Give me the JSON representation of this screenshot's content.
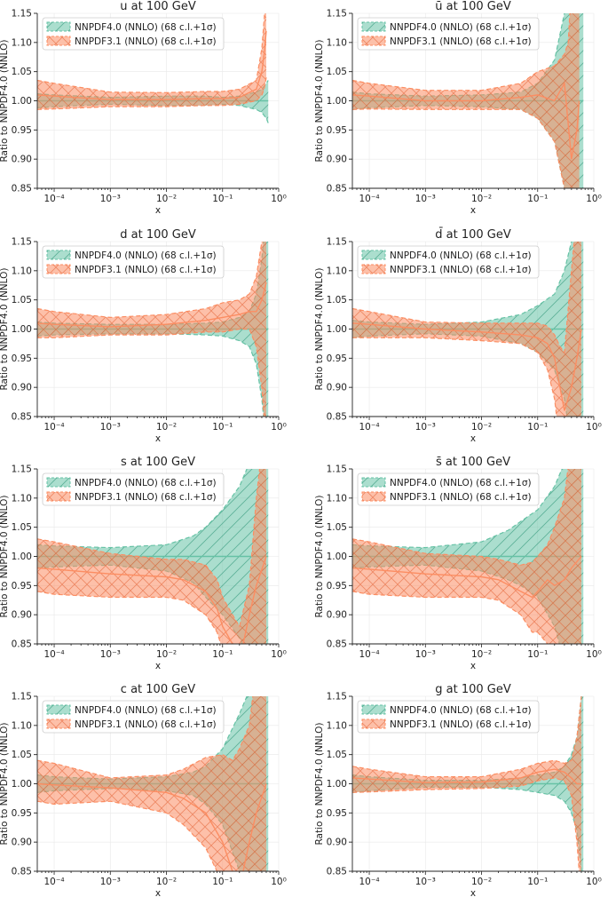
{
  "figure": {
    "x_ticks": [
      "10⁻⁴",
      "10⁻³",
      "10⁻²",
      "10⁻¹",
      "10⁰"
    ],
    "y_ticks": [
      "0.85",
      "0.90",
      "0.95",
      "1.00",
      "1.05",
      "1.10",
      "1.15"
    ]
  },
  "colors": {
    "nnpdf40": "#66c2a5",
    "nnpdf31": "#fc8d62"
  },
  "chart_data": [
    {
      "type": "area",
      "title": "u at 100 GeV",
      "xlabel": "x",
      "ylabel": "Ratio to NNPDF4.0 (NNLO)",
      "xscale": "log",
      "xlim": [
        5e-05,
        1
      ],
      "ylim": [
        0.85,
        1.15
      ],
      "legend": [
        "NNPDF4.0 (NNLO) (68 c.l.+1σ)",
        "NNPDF3.1 (NNLO) (68 c.l.+1σ)"
      ],
      "series": [
        {
          "name": "NNPDF4.0 (NNLO)",
          "x": [
            5e-05,
            0.0001,
            0.001,
            0.01,
            0.05,
            0.1,
            0.2,
            0.4,
            0.5,
            0.6,
            0.65
          ],
          "central": [
            1,
            1,
            1,
            1,
            1,
            1,
            1,
            1,
            1,
            1,
            1
          ],
          "upper": [
            1.012,
            1.01,
            1.006,
            1.008,
            1.008,
            1.006,
            1.008,
            1.015,
            1.02,
            1.03,
            1.035
          ],
          "lower": [
            0.988,
            0.99,
            0.994,
            0.992,
            0.992,
            0.994,
            0.992,
            0.985,
            0.98,
            0.97,
            0.962
          ]
        },
        {
          "name": "NNPDF3.1 (NNLO)",
          "x": [
            5e-05,
            0.0001,
            0.001,
            0.01,
            0.05,
            0.1,
            0.2,
            0.4,
            0.5,
            0.55,
            0.6
          ],
          "central": [
            1.01,
            1.008,
            1.002,
            1.002,
            1.004,
            1.004,
            1.006,
            1.02,
            1.05,
            1.08,
            1.12
          ],
          "upper": [
            1.035,
            1.03,
            1.015,
            1.014,
            1.016,
            1.016,
            1.02,
            1.035,
            1.09,
            1.14,
            1.2
          ],
          "lower": [
            0.985,
            0.986,
            0.99,
            0.99,
            0.992,
            0.992,
            0.994,
            1.0,
            1.01,
            1.02,
            1.04
          ]
        }
      ]
    },
    {
      "type": "area",
      "title": "ū at 100 GeV",
      "xlabel": "x",
      "ylabel": "Ratio to NNPDF4.0 (NNLO)",
      "xscale": "log",
      "xlim": [
        5e-05,
        1
      ],
      "ylim": [
        0.85,
        1.15
      ],
      "legend": [
        "NNPDF4.0 (NNLO) (68 c.l.+1σ)",
        "NNPDF3.1 (NNLO) (68 c.l.+1σ)"
      ],
      "series": [
        {
          "name": "NNPDF4.0 (NNLO)",
          "x": [
            5e-05,
            0.0001,
            0.001,
            0.01,
            0.05,
            0.1,
            0.2,
            0.3,
            0.4,
            0.6,
            0.65
          ],
          "central": [
            1,
            1,
            1,
            1,
            1,
            1,
            1,
            1,
            1,
            1,
            1
          ],
          "upper": [
            1.015,
            1.012,
            1.008,
            1.01,
            1.015,
            1.03,
            1.07,
            1.15,
            1.25,
            1.25,
            1.25
          ],
          "lower": [
            0.985,
            0.988,
            0.992,
            0.99,
            0.985,
            0.97,
            0.93,
            0.85,
            0.75,
            0.75,
            0.75
          ]
        },
        {
          "name": "NNPDF3.1 (NNLO)",
          "x": [
            5e-05,
            0.0001,
            0.001,
            0.01,
            0.05,
            0.1,
            0.2,
            0.3,
            0.35,
            0.4,
            0.5,
            0.55
          ],
          "central": [
            1.01,
            1.008,
            1.0,
            1.0,
            1.006,
            1.01,
            1.0,
            1.03,
            0.96,
            0.9,
            0.95,
            1.0
          ],
          "upper": [
            1.035,
            1.03,
            1.018,
            1.018,
            1.03,
            1.05,
            1.06,
            1.08,
            1.1,
            1.2,
            1.25,
            1.25
          ],
          "lower": [
            0.985,
            0.986,
            0.985,
            0.985,
            0.985,
            0.97,
            0.93,
            0.85,
            0.75,
            0.75,
            0.75,
            0.75
          ]
        }
      ]
    },
    {
      "type": "area",
      "title": "d at 100 GeV",
      "xlabel": "x",
      "ylabel": "Ratio to NNPDF4.0 (NNLO)",
      "xscale": "log",
      "xlim": [
        5e-05,
        1
      ],
      "ylim": [
        0.85,
        1.15
      ],
      "legend": [
        "NNPDF4.0 (NNLO) (68 c.l.+1σ)",
        "NNPDF3.1 (NNLO) (68 c.l.+1σ)"
      ],
      "series": [
        {
          "name": "NNPDF4.0 (NNLO)",
          "x": [
            5e-05,
            0.0001,
            0.001,
            0.01,
            0.05,
            0.1,
            0.2,
            0.3,
            0.4,
            0.5,
            0.6,
            0.65
          ],
          "central": [
            1,
            1,
            1,
            1,
            1,
            1,
            1,
            1,
            1,
            1,
            1,
            1
          ],
          "upper": [
            1.012,
            1.01,
            1.008,
            1.008,
            1.01,
            1.012,
            1.02,
            1.03,
            1.06,
            1.12,
            1.2,
            1.25
          ],
          "lower": [
            0.988,
            0.99,
            0.992,
            0.992,
            0.99,
            0.988,
            0.98,
            0.97,
            0.94,
            0.88,
            0.8,
            0.75
          ]
        },
        {
          "name": "NNPDF3.1 (NNLO)",
          "x": [
            5e-05,
            0.0001,
            0.001,
            0.01,
            0.05,
            0.1,
            0.2,
            0.3,
            0.4,
            0.5,
            0.6
          ],
          "central": [
            1.01,
            1.008,
            1.004,
            1.008,
            1.015,
            1.02,
            1.025,
            1.03,
            1.03,
            1.05,
            1.08
          ],
          "upper": [
            1.035,
            1.03,
            1.02,
            1.025,
            1.035,
            1.045,
            1.05,
            1.06,
            1.09,
            1.15,
            1.25
          ],
          "lower": [
            0.985,
            0.985,
            0.99,
            0.99,
            0.995,
            0.995,
            1.0,
            1.0,
            0.97,
            0.9,
            0.8
          ]
        }
      ]
    },
    {
      "type": "area",
      "title": "d̄ at 100 GeV",
      "xlabel": "x",
      "ylabel": "Ratio to NNPDF4.0 (NNLO)",
      "xscale": "log",
      "xlim": [
        5e-05,
        1
      ],
      "ylim": [
        0.85,
        1.15
      ],
      "legend": [
        "NNPDF4.0 (NNLO) (68 c.l.+1σ)",
        "NNPDF3.1 (NNLO) (68 c.l.+1σ)"
      ],
      "series": [
        {
          "name": "NNPDF4.0 (NNLO)",
          "x": [
            5e-05,
            0.0001,
            0.001,
            0.01,
            0.05,
            0.1,
            0.2,
            0.3,
            0.4,
            0.5,
            0.6,
            0.65
          ],
          "central": [
            1,
            1,
            1,
            1,
            1,
            1,
            1,
            1,
            1,
            1,
            1,
            1
          ],
          "upper": [
            1.015,
            1.012,
            1.008,
            1.012,
            1.025,
            1.04,
            1.06,
            1.1,
            1.15,
            1.25,
            1.25,
            1.25
          ],
          "lower": [
            0.985,
            0.988,
            0.992,
            0.988,
            0.975,
            0.96,
            0.93,
            0.88,
            0.8,
            0.75,
            0.75,
            0.75
          ]
        },
        {
          "name": "NNPDF3.1 (NNLO)",
          "x": [
            5e-05,
            0.0001,
            0.001,
            0.01,
            0.05,
            0.1,
            0.15,
            0.2,
            0.25,
            0.3,
            0.4,
            0.5,
            0.6
          ],
          "central": [
            1.01,
            1.008,
            1.0,
            0.995,
            0.99,
            0.985,
            0.975,
            0.95,
            0.9,
            0.86,
            0.9,
            0.95,
            1.0
          ],
          "upper": [
            1.035,
            1.03,
            1.012,
            1.01,
            1.01,
            1.01,
            1.005,
            0.99,
            0.97,
            0.96,
            1.1,
            1.2,
            1.25
          ],
          "lower": [
            0.985,
            0.985,
            0.985,
            0.98,
            0.975,
            0.96,
            0.93,
            0.88,
            0.8,
            0.75,
            0.75,
            0.75,
            0.75
          ]
        }
      ]
    },
    {
      "type": "area",
      "title": "s at 100 GeV",
      "xlabel": "x",
      "ylabel": "Ratio to NNPDF4.0 (NNLO)",
      "xscale": "log",
      "xlim": [
        5e-05,
        1
      ],
      "ylim": [
        0.85,
        1.15
      ],
      "legend": [
        "NNPDF4.0 (NNLO) (68 c.l.+1σ)",
        "NNPDF3.1 (NNLO) (68 c.l.+1σ)"
      ],
      "series": [
        {
          "name": "NNPDF4.0 (NNLO)",
          "x": [
            5e-05,
            0.0001,
            0.001,
            0.01,
            0.03,
            0.05,
            0.1,
            0.2,
            0.3,
            0.4,
            0.6,
            0.65
          ],
          "central": [
            1,
            1,
            1,
            1,
            1,
            1,
            1,
            1,
            1,
            1,
            1,
            1
          ],
          "upper": [
            1.02,
            1.018,
            1.015,
            1.02,
            1.035,
            1.05,
            1.08,
            1.12,
            1.16,
            1.2,
            1.25,
            1.25
          ],
          "lower": [
            0.98,
            0.982,
            0.985,
            0.975,
            0.955,
            0.93,
            0.9,
            0.86,
            0.82,
            0.75,
            0.75,
            0.75
          ]
        },
        {
          "name": "NNPDF3.1 (NNLO)",
          "x": [
            5e-05,
            0.0001,
            0.001,
            0.01,
            0.02,
            0.05,
            0.08,
            0.1,
            0.15,
            0.2,
            0.3,
            0.4,
            0.6
          ],
          "central": [
            0.98,
            0.978,
            0.97,
            0.965,
            0.96,
            0.94,
            0.91,
            0.88,
            0.85,
            0.82,
            0.9,
            0.95,
            1.0
          ],
          "upper": [
            1.03,
            1.025,
            1.005,
            0.995,
            0.995,
            0.985,
            0.96,
            0.93,
            0.9,
            0.88,
            0.95,
            1.1,
            1.25
          ],
          "lower": [
            0.94,
            0.935,
            0.93,
            0.93,
            0.925,
            0.9,
            0.87,
            0.84,
            0.8,
            0.75,
            0.75,
            0.75,
            0.75
          ]
        }
      ]
    },
    {
      "type": "area",
      "title": "s̄ at 100 GeV",
      "xlabel": "x",
      "ylabel": "Ratio to NNPDF4.0 (NNLO)",
      "xscale": "log",
      "xlim": [
        5e-05,
        1
      ],
      "ylim": [
        0.85,
        1.15
      ],
      "legend": [
        "NNPDF4.0 (NNLO) (68 c.l.+1σ)",
        "NNPDF3.1 (NNLO) (68 c.l.+1σ)"
      ],
      "series": [
        {
          "name": "NNPDF4.0 (NNLO)",
          "x": [
            5e-05,
            0.0001,
            0.001,
            0.01,
            0.03,
            0.05,
            0.1,
            0.2,
            0.3,
            0.4,
            0.6,
            0.65
          ],
          "central": [
            1,
            1,
            1,
            1,
            1,
            1,
            1,
            1,
            1,
            1,
            1,
            1
          ],
          "upper": [
            1.02,
            1.018,
            1.015,
            1.025,
            1.045,
            1.06,
            1.08,
            1.12,
            1.16,
            1.22,
            1.25,
            1.25
          ],
          "lower": [
            0.98,
            0.982,
            0.985,
            0.975,
            0.96,
            0.95,
            0.93,
            0.88,
            0.82,
            0.75,
            0.75,
            0.75
          ]
        },
        {
          "name": "NNPDF3.1 (NNLO)",
          "x": [
            5e-05,
            0.0001,
            0.001,
            0.01,
            0.02,
            0.05,
            0.08,
            0.1,
            0.15,
            0.2,
            0.3,
            0.4,
            0.6
          ],
          "central": [
            0.98,
            0.978,
            0.97,
            0.965,
            0.96,
            0.94,
            0.93,
            0.94,
            0.96,
            0.95,
            0.96,
            0.98,
            1.0
          ],
          "upper": [
            1.03,
            1.025,
            1.005,
            1.0,
            0.995,
            0.985,
            0.99,
            1.0,
            1.02,
            1.05,
            1.1,
            1.2,
            1.25
          ],
          "lower": [
            0.94,
            0.935,
            0.93,
            0.93,
            0.925,
            0.9,
            0.87,
            0.87,
            0.85,
            0.8,
            0.75,
            0.75,
            0.75
          ]
        }
      ]
    },
    {
      "type": "area",
      "title": "c at 100 GeV",
      "xlabel": "x",
      "ylabel": "Ratio to NNPDF4.0 (NNLO)",
      "xscale": "log",
      "xlim": [
        5e-05,
        1
      ],
      "ylim": [
        0.85,
        1.15
      ],
      "legend": [
        "NNPDF4.0 (NNLO) (68 c.l.+1σ)",
        "NNPDF3.1 (NNLO) (68 c.l.+1σ)"
      ],
      "series": [
        {
          "name": "NNPDF4.0 (NNLO)",
          "x": [
            5e-05,
            0.0001,
            0.001,
            0.01,
            0.03,
            0.05,
            0.1,
            0.2,
            0.3,
            0.4,
            0.6,
            0.65
          ],
          "central": [
            1,
            1,
            1,
            1,
            1,
            1,
            1,
            1,
            1,
            1,
            1,
            1
          ],
          "upper": [
            1.015,
            1.012,
            1.008,
            1.012,
            1.02,
            1.03,
            1.06,
            1.12,
            1.16,
            1.2,
            1.25,
            1.25
          ],
          "lower": [
            0.985,
            0.988,
            0.992,
            0.988,
            0.98,
            0.965,
            0.93,
            0.85,
            0.8,
            0.75,
            0.75,
            0.75
          ]
        },
        {
          "name": "NNPDF3.1 (NNLO)",
          "x": [
            5e-05,
            0.0001,
            0.001,
            0.01,
            0.02,
            0.05,
            0.1,
            0.15,
            0.2,
            0.3,
            0.4,
            0.6
          ],
          "central": [
            1.0,
            0.998,
            0.993,
            0.985,
            0.975,
            0.95,
            0.9,
            0.85,
            0.82,
            0.9,
            0.95,
            1.0
          ],
          "upper": [
            1.04,
            1.035,
            1.01,
            1.015,
            1.025,
            1.045,
            1.05,
            1.04,
            1.06,
            1.1,
            1.2,
            1.25
          ],
          "lower": [
            0.97,
            0.965,
            0.97,
            0.95,
            0.93,
            0.89,
            0.83,
            0.78,
            0.75,
            0.75,
            0.75,
            0.75
          ]
        }
      ]
    },
    {
      "type": "area",
      "title": "g at 100 GeV",
      "xlabel": "x",
      "ylabel": "Ratio to NNPDF4.0 (NNLO)",
      "xscale": "log",
      "xlim": [
        5e-05,
        1
      ],
      "ylim": [
        0.85,
        1.15
      ],
      "legend": [
        "NNPDF4.0 (NNLO) (68 c.l.+1σ)",
        "NNPDF3.1 (NNLO) (68 c.l.+1σ)"
      ],
      "series": [
        {
          "name": "NNPDF4.0 (NNLO)",
          "x": [
            5e-05,
            0.0001,
            0.001,
            0.01,
            0.05,
            0.1,
            0.2,
            0.3,
            0.4,
            0.5,
            0.6,
            0.65
          ],
          "central": [
            1,
            1,
            1,
            1,
            1,
            1,
            1,
            1,
            1,
            1,
            1,
            1
          ],
          "upper": [
            1.015,
            1.012,
            1.006,
            1.006,
            1.01,
            1.015,
            1.02,
            1.03,
            1.05,
            1.08,
            1.15,
            1.2
          ],
          "lower": [
            0.985,
            0.988,
            0.994,
            0.994,
            0.99,
            0.985,
            0.98,
            0.97,
            0.95,
            0.92,
            0.85,
            0.8
          ]
        },
        {
          "name": "NNPDF3.1 (NNLO)",
          "x": [
            5e-05,
            0.0001,
            0.001,
            0.01,
            0.05,
            0.1,
            0.2,
            0.3,
            0.4,
            0.5,
            0.6
          ],
          "central": [
            1.01,
            1.008,
            1.002,
            1.003,
            1.01,
            1.02,
            1.025,
            1.02,
            1.01,
            1.0,
            1.0
          ],
          "upper": [
            1.03,
            1.025,
            1.012,
            1.012,
            1.025,
            1.035,
            1.04,
            1.035,
            1.04,
            1.08,
            1.15
          ],
          "lower": [
            0.985,
            0.986,
            0.99,
            0.992,
            0.996,
            1.005,
            1.01,
            1.005,
            0.98,
            0.9,
            0.8
          ]
        }
      ]
    }
  ]
}
